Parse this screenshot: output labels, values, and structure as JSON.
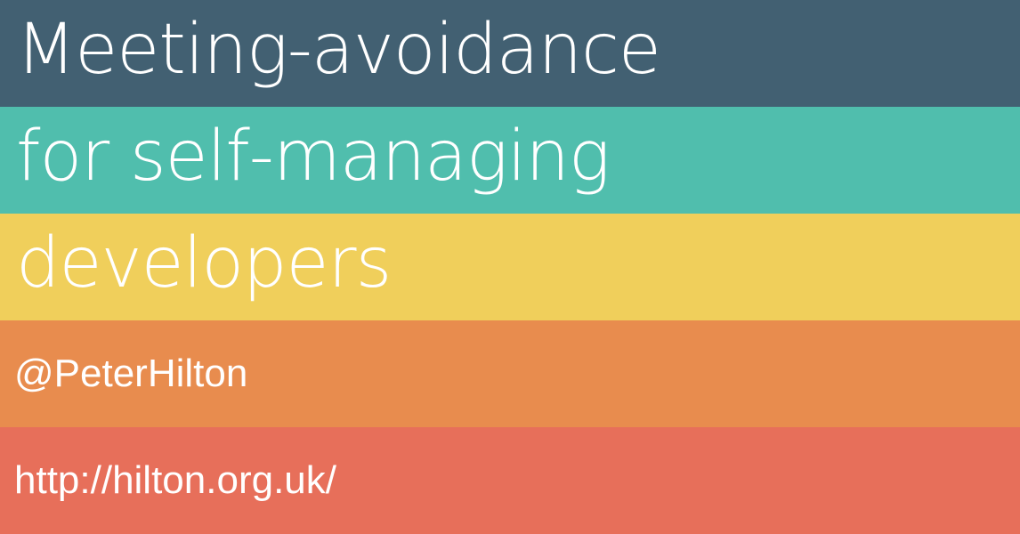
{
  "slide": {
    "title_line_1": "Meeting-avoidance",
    "title_line_2": "for self-managing",
    "title_line_3": "developers",
    "author_handle": "@PeterHilton",
    "author_url": "http://hilton.org.uk/"
  },
  "colors": {
    "band_1": "#426072",
    "band_2": "#50BEAD",
    "band_3": "#F0CF5B",
    "band_4": "#E88C4E",
    "band_5": "#E76F5A",
    "text": "#FFFFFF"
  }
}
